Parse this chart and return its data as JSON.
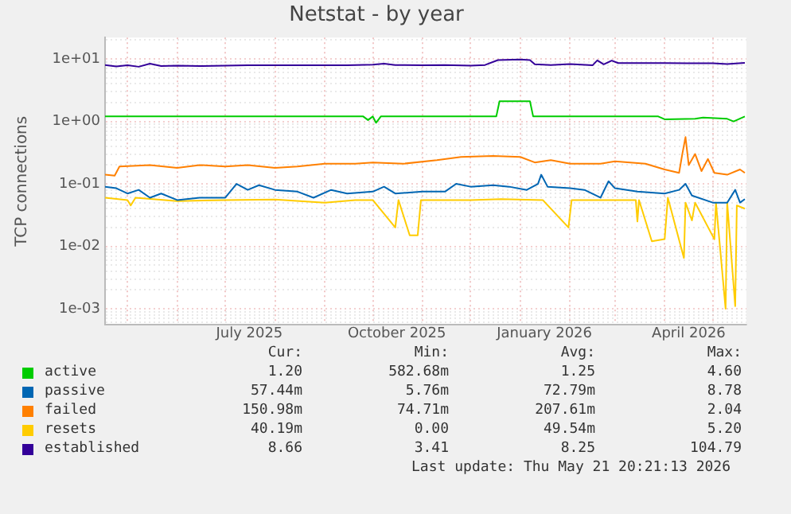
{
  "chart_data": {
    "type": "line",
    "title": "Netstat - by year",
    "ylabel": "TCP connections",
    "log": "y",
    "grid": true,
    "legend": "bottom",
    "marker": "none",
    "line_style": "solid",
    "xlim": [
      "2025-04-17",
      "2026-05-22"
    ],
    "xticks": [
      {
        "value": "2025-05-01",
        "label": null
      },
      {
        "value": "2025-06-01",
        "label": null
      },
      {
        "value": "2025-07-01",
        "label": null
      },
      {
        "value": "2025-07-16",
        "label": "July 2025"
      },
      {
        "value": "2025-08-01",
        "label": null
      },
      {
        "value": "2025-09-01",
        "label": null
      },
      {
        "value": "2025-10-01",
        "label": null
      },
      {
        "value": "2025-10-16",
        "label": "October 2025"
      },
      {
        "value": "2025-11-01",
        "label": null
      },
      {
        "value": "2025-12-01",
        "label": null
      },
      {
        "value": "2026-01-01",
        "label": null
      },
      {
        "value": "2026-01-16",
        "label": "January 2026"
      },
      {
        "value": "2026-02-01",
        "label": null
      },
      {
        "value": "2026-03-01",
        "label": null
      },
      {
        "value": "2026-04-01",
        "label": null
      },
      {
        "value": "2026-04-16",
        "label": "April 2026"
      },
      {
        "value": "2026-05-01",
        "label": null
      }
    ],
    "ylim": [
      0.00055,
      22
    ],
    "yticks": [
      {
        "value": 0.0006,
        "label": null
      },
      {
        "value": 0.0007,
        "label": null
      },
      {
        "value": 0.0008,
        "label": null
      },
      {
        "value": 0.0009,
        "label": null
      },
      {
        "value": 0.001,
        "label": "1e-03"
      },
      {
        "value": 0.002,
        "label": null
      },
      {
        "value": 0.003,
        "label": null
      },
      {
        "value": 0.004,
        "label": null
      },
      {
        "value": 0.005,
        "label": null
      },
      {
        "value": 0.006,
        "label": null
      },
      {
        "value": 0.007,
        "label": null
      },
      {
        "value": 0.008,
        "label": null
      },
      {
        "value": 0.009,
        "label": null
      },
      {
        "value": 0.01,
        "label": "1e-02"
      },
      {
        "value": 0.02,
        "label": null
      },
      {
        "value": 0.03,
        "label": null
      },
      {
        "value": 0.04,
        "label": null
      },
      {
        "value": 0.05,
        "label": null
      },
      {
        "value": 0.06,
        "label": null
      },
      {
        "value": 0.07,
        "label": null
      },
      {
        "value": 0.08,
        "label": null
      },
      {
        "value": 0.09,
        "label": null
      },
      {
        "value": 0.1,
        "label": "1e-01"
      },
      {
        "value": 0.2,
        "label": null
      },
      {
        "value": 0.3,
        "label": null
      },
      {
        "value": 0.4,
        "label": null
      },
      {
        "value": 0.5,
        "label": null
      },
      {
        "value": 0.6,
        "label": null
      },
      {
        "value": 0.7,
        "label": null
      },
      {
        "value": 0.8,
        "label": null
      },
      {
        "value": 0.9,
        "label": null
      },
      {
        "value": 1,
        "label": "1e+00"
      },
      {
        "value": 2,
        "label": null
      },
      {
        "value": 3,
        "label": null
      },
      {
        "value": 4,
        "label": null
      },
      {
        "value": 5,
        "label": null
      },
      {
        "value": 6,
        "label": null
      },
      {
        "value": 7,
        "label": null
      },
      {
        "value": 8,
        "label": null
      },
      {
        "value": 9,
        "label": null
      },
      {
        "value": 10,
        "label": "1e+01"
      },
      {
        "value": 20,
        "label": null
      }
    ],
    "annotations": [
      "Cur:",
      "Min:",
      "Avg:",
      "Max:",
      "1.20",
      "582.68m",
      "1.25",
      "4.60",
      "57.44m",
      "5.76m",
      "72.79m",
      "8.78",
      "150.98m",
      "74.71m",
      "207.61m",
      "2.04",
      "40.19m",
      "0.00",
      "49.54m",
      "5.20",
      "8.66",
      "3.41",
      "8.25",
      "104.79",
      "Last update: Thu May 21 20:21:13 2026"
    ],
    "series": [
      {
        "name": "active",
        "color": "#00cc00",
        "x": [
          "2025-04-17",
          "2025-09-25",
          "2025-09-28",
          "2025-10-01",
          "2025-10-03",
          "2025-10-06",
          "2025-12-17",
          "2025-12-19",
          "2026-01-07",
          "2026-01-09",
          "2026-03-28",
          "2026-04-01",
          "2026-04-20",
          "2026-04-25",
          "2026-05-10",
          "2026-05-14",
          "2026-05-21"
        ],
        "values": [
          1.2,
          1.2,
          1.05,
          1.2,
          0.95,
          1.2,
          1.2,
          2.1,
          2.1,
          1.2,
          1.2,
          1.08,
          1.1,
          1.15,
          1.1,
          1.0,
          1.2
        ]
      },
      {
        "name": "passive",
        "color": "#0066b3",
        "x": [
          "2025-04-17",
          "2025-04-24",
          "2025-05-01",
          "2025-05-08",
          "2025-05-15",
          "2025-05-22",
          "2025-06-01",
          "2025-06-15",
          "2025-07-01",
          "2025-07-08",
          "2025-07-15",
          "2025-07-22",
          "2025-08-01",
          "2025-08-15",
          "2025-08-25",
          "2025-09-05",
          "2025-09-15",
          "2025-10-01",
          "2025-10-08",
          "2025-10-15",
          "2025-11-01",
          "2025-11-15",
          "2025-11-22",
          "2025-12-01",
          "2025-12-15",
          "2025-12-25",
          "2026-01-05",
          "2026-01-12",
          "2026-01-14",
          "2026-01-18",
          "2026-02-01",
          "2026-02-10",
          "2026-02-20",
          "2026-02-25",
          "2026-03-01",
          "2026-03-15",
          "2026-04-01",
          "2026-04-10",
          "2026-04-14",
          "2026-04-18",
          "2026-05-01",
          "2026-05-10",
          "2026-05-15",
          "2026-05-18",
          "2026-05-21"
        ],
        "values": [
          0.09,
          0.085,
          0.07,
          0.08,
          0.06,
          0.07,
          0.055,
          0.06,
          0.06,
          0.1,
          0.08,
          0.095,
          0.08,
          0.075,
          0.06,
          0.08,
          0.07,
          0.075,
          0.09,
          0.07,
          0.075,
          0.075,
          0.1,
          0.09,
          0.095,
          0.09,
          0.08,
          0.1,
          0.14,
          0.09,
          0.085,
          0.08,
          0.06,
          0.11,
          0.085,
          0.075,
          0.07,
          0.08,
          0.1,
          0.065,
          0.05,
          0.05,
          0.08,
          0.05,
          0.057
        ]
      },
      {
        "name": "failed",
        "color": "#ff8000",
        "x": [
          "2025-04-17",
          "2025-04-23",
          "2025-04-26",
          "2025-05-15",
          "2025-06-01",
          "2025-06-15",
          "2025-07-01",
          "2025-07-15",
          "2025-08-01",
          "2025-08-15",
          "2025-09-01",
          "2025-09-20",
          "2025-10-01",
          "2025-10-20",
          "2025-11-10",
          "2025-11-25",
          "2025-12-15",
          "2026-01-01",
          "2026-01-10",
          "2026-01-20",
          "2026-02-01",
          "2026-02-20",
          "2026-03-01",
          "2026-03-20",
          "2026-04-01",
          "2026-04-10",
          "2026-04-12",
          "2026-04-14",
          "2026-04-16",
          "2026-04-20",
          "2026-04-24",
          "2026-04-28",
          "2026-05-02",
          "2026-05-10",
          "2026-05-18",
          "2026-05-21"
        ],
        "values": [
          0.14,
          0.135,
          0.19,
          0.2,
          0.18,
          0.2,
          0.19,
          0.2,
          0.18,
          0.19,
          0.21,
          0.21,
          0.22,
          0.21,
          0.24,
          0.27,
          0.28,
          0.27,
          0.22,
          0.24,
          0.21,
          0.21,
          0.23,
          0.21,
          0.17,
          0.15,
          0.3,
          0.56,
          0.2,
          0.3,
          0.16,
          0.25,
          0.15,
          0.14,
          0.17,
          0.15
        ]
      },
      {
        "name": "resets",
        "color": "#ffcc00",
        "x": [
          "2025-04-17",
          "2025-05-01",
          "2025-05-03",
          "2025-05-06",
          "2025-06-01",
          "2025-07-01",
          "2025-08-01",
          "2025-09-01",
          "2025-09-20",
          "2025-10-01",
          "2025-10-15",
          "2025-10-17",
          "2025-10-24",
          "2025-10-29",
          "2025-10-31",
          "2025-12-01",
          "2025-12-20",
          "2026-01-15",
          "2026-01-31",
          "2026-02-02",
          "2026-03-01",
          "2026-03-14",
          "2026-03-15",
          "2026-03-16",
          "2026-03-24",
          "2026-04-01",
          "2026-04-03",
          "2026-04-13",
          "2026-04-14",
          "2026-04-18",
          "2026-04-20",
          "2026-05-02",
          "2026-05-03",
          "2026-05-09",
          "2026-05-10",
          "2026-05-15",
          "2026-05-16",
          "2026-05-21"
        ],
        "values": [
          0.06,
          0.055,
          0.045,
          0.06,
          0.053,
          0.055,
          0.056,
          0.05,
          0.055,
          0.055,
          0.02,
          0.055,
          0.015,
          0.015,
          0.055,
          0.055,
          0.057,
          0.055,
          0.02,
          0.055,
          0.055,
          0.055,
          0.025,
          0.055,
          0.012,
          0.013,
          0.06,
          0.0065,
          0.05,
          0.026,
          0.05,
          0.013,
          0.05,
          0.001,
          0.05,
          0.0011,
          0.045,
          0.04
        ]
      },
      {
        "name": "established",
        "color": "#330099",
        "x": [
          "2025-04-17",
          "2025-04-24",
          "2025-05-01",
          "2025-05-08",
          "2025-05-15",
          "2025-05-22",
          "2025-06-01",
          "2025-06-15",
          "2025-07-01",
          "2025-07-15",
          "2025-08-01",
          "2025-08-15",
          "2025-09-01",
          "2025-09-15",
          "2025-10-01",
          "2025-10-08",
          "2025-10-15",
          "2025-11-01",
          "2025-11-15",
          "2025-12-01",
          "2025-12-10",
          "2025-12-18",
          "2026-01-01",
          "2026-01-07",
          "2026-01-10",
          "2026-01-20",
          "2026-02-01",
          "2026-02-15",
          "2026-02-18",
          "2026-02-22",
          "2026-02-27",
          "2026-03-03",
          "2026-04-01",
          "2026-04-15",
          "2026-05-01",
          "2026-05-10",
          "2026-05-21"
        ],
        "values": [
          8.0,
          7.6,
          7.9,
          7.5,
          8.4,
          7.7,
          7.8,
          7.7,
          7.8,
          7.9,
          7.9,
          7.9,
          7.9,
          7.9,
          8.1,
          8.4,
          8.0,
          7.9,
          8.0,
          7.8,
          8.0,
          9.6,
          9.8,
          9.6,
          8.2,
          8.0,
          8.3,
          7.9,
          9.5,
          8.2,
          9.4,
          8.6,
          8.6,
          8.5,
          8.5,
          8.3,
          8.66
        ]
      }
    ]
  }
}
